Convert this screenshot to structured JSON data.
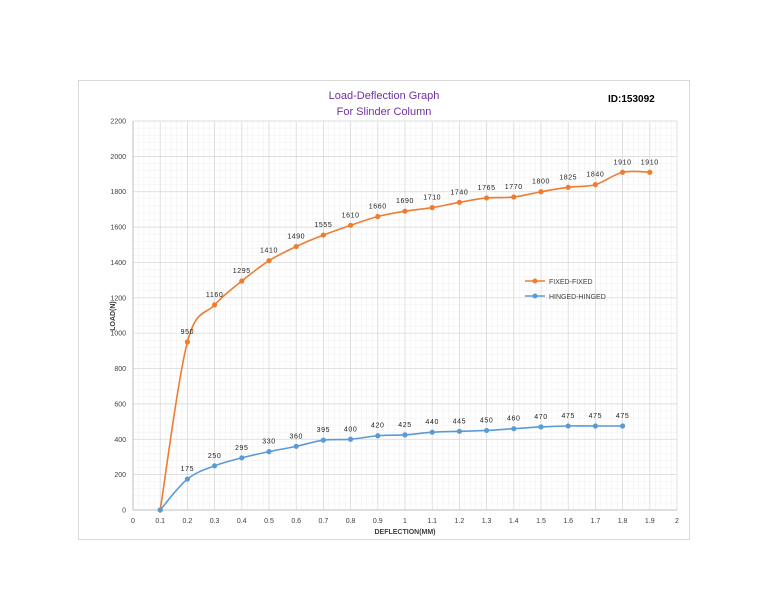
{
  "chart_data": {
    "type": "line",
    "title": [
      "Load-Deflection Graph",
      "For Slinder Column"
    ],
    "id_label": "ID:153092",
    "xlabel": "DEFLECTION(MM)",
    "ylabel": "LOAD(N)",
    "xlim": [
      0,
      2
    ],
    "ylim": [
      0,
      2200
    ],
    "x_ticks": [
      "0",
      "0.1",
      "0.2",
      "0.3",
      "0.4",
      "0.5",
      "0.6",
      "0.7",
      "0.8",
      "0.9",
      "1",
      "1.1",
      "1.2",
      "1.3",
      "1.4",
      "1.5",
      "1.6",
      "1.7",
      "1.8",
      "1.9",
      "2"
    ],
    "y_ticks": [
      "0",
      "200",
      "400",
      "600",
      "800",
      "1000",
      "1200",
      "1400",
      "1600",
      "1800",
      "2000",
      "2200"
    ],
    "grid": true,
    "legend_position": "right",
    "series": [
      {
        "name": "FIXED-FIXED",
        "color": "#ed7d31",
        "x": [
          0.1,
          0.2,
          0.3,
          0.4,
          0.5,
          0.6,
          0.7,
          0.8,
          0.9,
          1.0,
          1.1,
          1.2,
          1.3,
          1.4,
          1.5,
          1.6,
          1.7,
          1.8,
          1.9
        ],
        "y": [
          0,
          950,
          1160,
          1295,
          1410,
          1490,
          1555,
          1610,
          1660,
          1690,
          1710,
          1740,
          1765,
          1770,
          1800,
          1825,
          1840,
          1910,
          1910
        ],
        "labels": [
          "",
          "950",
          "1160",
          "1295",
          "1410",
          "1490",
          "1555",
          "1610",
          "1660",
          "1690",
          "1710",
          "1740",
          "1765",
          "1770",
          "1800",
          "1825",
          "1840",
          "1910",
          "1910"
        ]
      },
      {
        "name": "HINGED-HINGED",
        "color": "#5b9bd5",
        "x": [
          0.1,
          0.2,
          0.3,
          0.4,
          0.5,
          0.6,
          0.7,
          0.8,
          0.9,
          1.0,
          1.1,
          1.2,
          1.3,
          1.4,
          1.5,
          1.6,
          1.7,
          1.8
        ],
        "y": [
          0,
          175,
          250,
          295,
          330,
          360,
          395,
          400,
          420,
          425,
          440,
          445,
          450,
          460,
          470,
          475,
          475,
          475
        ],
        "labels": [
          "",
          "175",
          "250",
          "295",
          "330",
          "360",
          "395",
          "400",
          "420",
          "425",
          "440",
          "445",
          "450",
          "460",
          "470",
          "475",
          "475",
          "475"
        ]
      }
    ]
  }
}
